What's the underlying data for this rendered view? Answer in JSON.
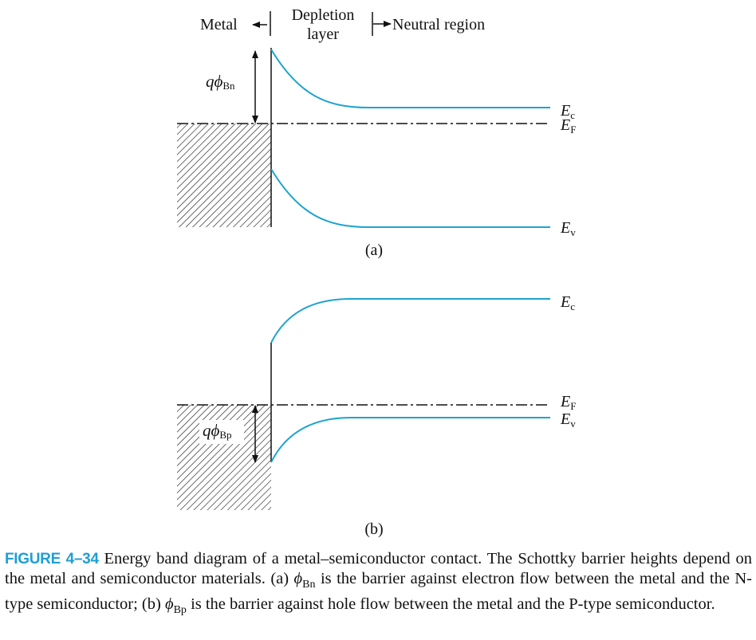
{
  "colors": {
    "band": "#1ea4d0",
    "figure_label": "#1f9fd4",
    "ink": "#111111"
  },
  "header": {
    "metal": "Metal",
    "depletion_line1": "Depletion",
    "depletion_line2": "layer",
    "neutral": "Neutral region"
  },
  "panel_a": {
    "barrier_q": "q",
    "barrier_phi": "ϕ",
    "barrier_sub": "Bn",
    "ec": "E",
    "ec_sub": "c",
    "ef": "E",
    "ef_sub": "F",
    "ev": "E",
    "ev_sub": "v",
    "label": "(a)"
  },
  "panel_b": {
    "barrier_q": "q",
    "barrier_phi": "ϕ",
    "barrier_sub": "Bp",
    "ec": "E",
    "ec_sub": "c",
    "ef": "E",
    "ef_sub": "F",
    "ev": "E",
    "ev_sub": "v",
    "label": "(b)"
  },
  "caption": {
    "figure": "FIGURE 4–34",
    "text1": " Energy band diagram of a metal–semiconductor contact. The Schottky barrier heights depend on the metal and semiconductor materials. (a) ",
    "phi1": "ϕ",
    "sub1": "Bn",
    "text2": " is the barrier against electron flow between the metal and the N-type semiconductor; (b) ",
    "phi2": "ϕ",
    "sub2": "Bp",
    "text3": " is the barrier against hole flow between the metal and the P-type semiconductor."
  }
}
